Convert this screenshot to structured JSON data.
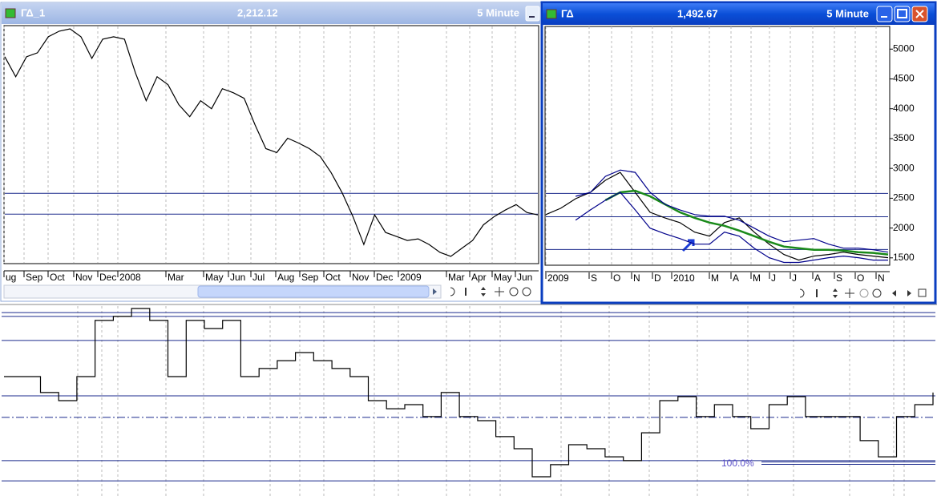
{
  "windows": [
    {
      "title": "ΓΔ_1",
      "price": "2,212.12",
      "interval": "5 Minute",
      "x_labels": [
        "ug",
        "Sep",
        "Oct",
        "Nov",
        "Dec",
        "2008",
        "Mar",
        "May",
        "Jun",
        "Jul",
        "Aug",
        "Sep",
        "Oct",
        "Nov",
        "Dec",
        "2009",
        "Mar",
        "Apr",
        "May",
        "Jun"
      ],
      "chart": {
        "type": "line",
        "ylim": [
          1417,
          5339
        ],
        "levels": [
          2570,
          2225
        ],
        "series": [
          {
            "color": "#000000",
            "values": [
              4836,
              4504,
              4836,
              4902,
              5167,
              5260,
              5299,
              5167,
              4809,
              5127,
              5167,
              5127,
              4571,
              4107,
              4504,
              4372,
              4040,
              3842,
              4107,
              3974,
              4306,
              4239,
              4147,
              3709,
              3312,
              3246,
              3484,
              3405,
              3312,
              3180,
              2914,
              2583,
              2186,
              1722,
              2212,
              1921,
              1854,
              1788,
              1815,
              1722,
              1590,
              1523,
              1656,
              1788,
              2047,
              2186,
              2292,
              2384,
              2252,
              2212
            ]
          }
        ]
      }
    },
    {
      "title": "ΓΔ",
      "price": "1,492.67",
      "interval": "5 Minute",
      "x_labels": [
        "2009",
        "S",
        "O",
        "N",
        "D",
        "2010",
        "M",
        "A",
        "M",
        "J",
        "J",
        "A",
        "S",
        "O",
        "N"
      ],
      "chart": {
        "type": "line",
        "ylim": [
          1390,
          5380
        ],
        "yticks": [
          1500,
          2000,
          2500,
          3000,
          3500,
          4000,
          4500,
          5000
        ],
        "levels": [
          2580,
          2190,
          1640
        ],
        "series": [
          {
            "color": "#000000",
            "values": [
              2225,
              2332,
              2492,
              2599,
              2800,
              2933,
              2599,
              2265,
              2171,
              2091,
              1931,
              1864,
              2091,
              2171,
              1931,
              1730,
              1556,
              1463,
              1530,
              1556,
              1596,
              1556,
              1530,
              1503
            ]
          },
          {
            "color": "#1a8a1a",
            "values": [
              null,
              null,
              null,
              null,
              2466,
              2599,
              2626,
              2532,
              2399,
              2265,
              2171,
              2091,
              2038,
              1957,
              1864,
              1770,
              1690,
              1663,
              1636,
              1636,
              1623,
              1596,
              1583,
              1556
            ]
          },
          {
            "color": "#00008b",
            "values": [
              null,
              null,
              2532,
              2599,
              2866,
              2973,
              2933,
              2599,
              2399,
              2305,
              2225,
              2198,
              2198,
              2131,
              1998,
              1864,
              1770,
              1797,
              1824,
              1730,
              1663,
              1663,
              1636,
              1596
            ]
          },
          {
            "color": "#00008b",
            "values": [
              null,
              null,
              2131,
              2305,
              2466,
              2599,
              2305,
              1998,
              1904,
              1824,
              1730,
              1730,
              1931,
              1864,
              1663,
              1503,
              1423,
              1423,
              1463,
              1503,
              1530,
              1503,
              1463,
              1463
            ]
          }
        ]
      }
    }
  ],
  "indicator": {
    "type": "step",
    "ylim": [
      0,
      100
    ],
    "levels": [
      95.8,
      93.8,
      81.3,
      52.5,
      18.8,
      8.3
    ],
    "dashed_levels": [
      41.3
    ],
    "labeled_level": {
      "value": 17.5,
      "label": "100.0%"
    },
    "series": [
      {
        "color": "#000000",
        "values": [
          62.5,
          62.5,
          54.2,
          50,
          62.5,
          91.7,
          93.8,
          97.9,
          91.7,
          62.5,
          91.7,
          87.5,
          91.7,
          62.5,
          66.7,
          70.8,
          75,
          70.8,
          66.7,
          62.5,
          50,
          45.8,
          47.9,
          41.7,
          54.2,
          41.7,
          39.6,
          31.3,
          25,
          10.4,
          16.7,
          27.1,
          25,
          20.8,
          18.8,
          33.3,
          50,
          52.1,
          41.7,
          47.9,
          41.7,
          35.4,
          47.9,
          52.1,
          41.7,
          41.7,
          41.7,
          29.2,
          20.8,
          41.7,
          47.9,
          54.2
        ]
      }
    ]
  }
}
